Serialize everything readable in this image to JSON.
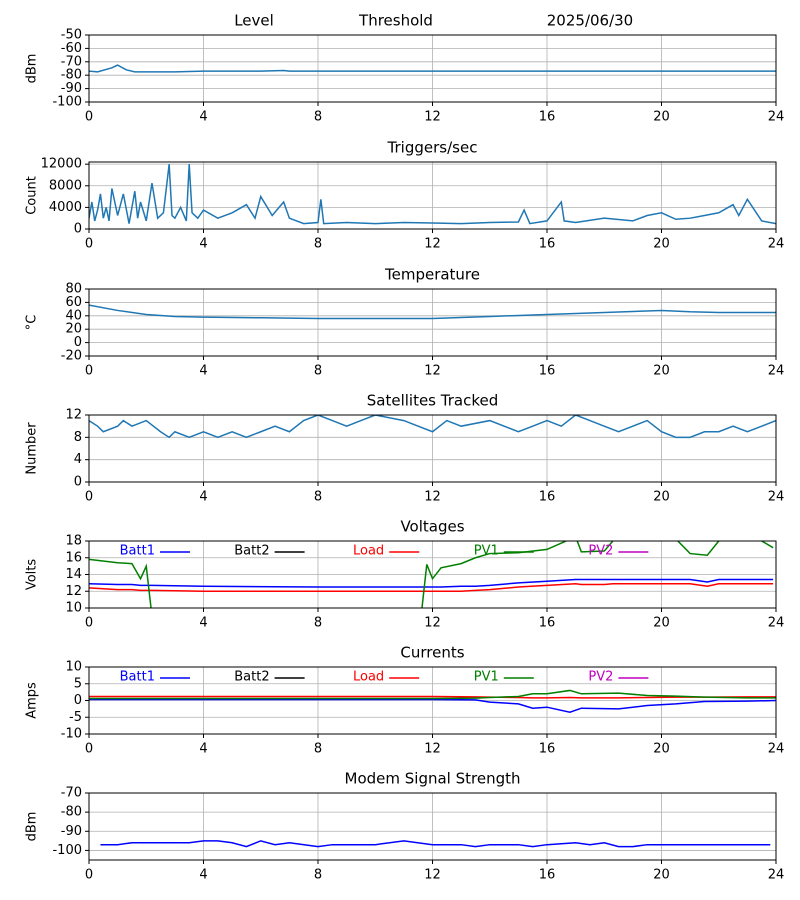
{
  "chart_data": [
    {
      "type": "line",
      "titles": [
        "Level",
        "Threshold",
        "2025/06/30"
      ],
      "ylabel": "dBm",
      "x": [
        0,
        0.3,
        0.8,
        1.0,
        1.3,
        1.6,
        2,
        3,
        4,
        6,
        6.8,
        7,
        8,
        12,
        16,
        20,
        24
      ],
      "series": [
        {
          "color": "#1f77b4",
          "values": [
            -77,
            -77.5,
            -74.5,
            -72.5,
            -76,
            -77.5,
            -77.5,
            -77.5,
            -77,
            -77,
            -76.5,
            -77,
            -77,
            -77,
            -77,
            -77,
            -77
          ]
        }
      ],
      "xlim": [
        0,
        24
      ],
      "xticks": [
        0,
        4,
        8,
        12,
        16,
        20,
        24
      ],
      "ylim": [
        -100,
        -50
      ],
      "yticks": [
        -100,
        -90,
        -80,
        -70,
        -60,
        -50
      ],
      "grid": true
    },
    {
      "type": "line",
      "title": "Triggers/sec",
      "ylabel": "Count",
      "x": [
        0,
        0.1,
        0.2,
        0.3,
        0.4,
        0.5,
        0.6,
        0.7,
        0.8,
        1.0,
        1.2,
        1.4,
        1.6,
        1.7,
        1.8,
        2.0,
        2.2,
        2.4,
        2.6,
        2.8,
        2.9,
        3.0,
        3.2,
        3.4,
        3.5,
        3.6,
        3.8,
        4.0,
        4.5,
        5.0,
        5.5,
        5.8,
        6.0,
        6.4,
        6.8,
        7.0,
        7.5,
        8.0,
        8.1,
        8.2,
        9,
        10,
        11,
        12,
        13,
        14,
        15,
        15.2,
        15.4,
        16,
        16.5,
        16.6,
        17,
        18,
        19,
        19.5,
        20,
        20.5,
        21,
        21.5,
        22,
        22.5,
        22.7,
        23,
        23.5,
        24
      ],
      "series": [
        {
          "color": "#1f77b4",
          "values": [
            2000,
            5000,
            1500,
            3500,
            6500,
            2000,
            4000,
            1500,
            7500,
            2500,
            6500,
            1000,
            7000,
            2000,
            5000,
            1500,
            8500,
            2000,
            3000,
            12000,
            2500,
            2000,
            4000,
            1500,
            12000,
            3000,
            2000,
            3500,
            2000,
            3000,
            4500,
            2000,
            6000,
            2500,
            5000,
            2000,
            1000,
            1200,
            5500,
            1000,
            1200,
            1000,
            1200,
            1100,
            1000,
            1200,
            1300,
            3500,
            1000,
            1500,
            5000,
            1500,
            1200,
            2000,
            1500,
            2500,
            3000,
            1800,
            2000,
            2500,
            3000,
            4500,
            2500,
            5500,
            1500,
            1000
          ]
        }
      ],
      "xlim": [
        0,
        24
      ],
      "xticks": [
        0,
        4,
        8,
        12,
        16,
        20,
        24
      ],
      "ylim": [
        0,
        12400
      ],
      "yticks": [
        0,
        4000,
        8000,
        12000
      ],
      "grid": true
    },
    {
      "type": "line",
      "title": "Temperature",
      "ylabel": "°C",
      "x": [
        0,
        1,
        2,
        3,
        4,
        6,
        8,
        10,
        12,
        14,
        16,
        18,
        20,
        21,
        22,
        24
      ],
      "series": [
        {
          "color": "#1f77b4",
          "values": [
            56,
            48,
            42,
            39,
            38,
            37,
            36,
            36,
            36,
            39,
            42,
            45,
            48,
            46,
            45,
            45
          ]
        }
      ],
      "xlim": [
        0,
        24
      ],
      "xticks": [
        0,
        4,
        8,
        12,
        16,
        20,
        24
      ],
      "ylim": [
        -20,
        80
      ],
      "yticks": [
        -20,
        0,
        20,
        40,
        60,
        80
      ],
      "grid": true
    },
    {
      "type": "line",
      "title": "Satellites Tracked",
      "ylabel": "Number",
      "x": [
        0,
        0.3,
        0.5,
        1,
        1.2,
        1.5,
        2,
        2.5,
        2.8,
        3,
        3.5,
        4,
        4.5,
        5,
        5.5,
        6,
        6.5,
        7,
        7.5,
        8,
        8.5,
        9,
        9.5,
        10,
        11,
        11.5,
        12,
        12.5,
        13,
        14,
        15,
        15.5,
        16,
        16.5,
        17,
        17.5,
        18,
        18.5,
        19,
        19.5,
        20,
        20.5,
        21,
        21.5,
        22,
        22.5,
        23,
        23.5,
        24
      ],
      "series": [
        {
          "color": "#1f77b4",
          "values": [
            11,
            10,
            9,
            10,
            11,
            10,
            11,
            9,
            8,
            9,
            8,
            9,
            8,
            9,
            8,
            9,
            10,
            9,
            11,
            12,
            11,
            10,
            11,
            12,
            11,
            10,
            9,
            11,
            10,
            11,
            9,
            10,
            11,
            10,
            12,
            11,
            10,
            9,
            10,
            11,
            9,
            8,
            8,
            9,
            9,
            10,
            9,
            10,
            11
          ]
        }
      ],
      "xlim": [
        0,
        24
      ],
      "xticks": [
        0,
        4,
        8,
        12,
        16,
        20,
        24
      ],
      "ylim": [
        0,
        12
      ],
      "yticks": [
        0,
        4,
        8,
        12
      ],
      "grid": true
    },
    {
      "type": "line",
      "title": "Voltages",
      "ylabel": "Volts",
      "x": [
        0,
        1,
        1.5,
        1.8,
        2,
        2.2,
        4,
        8,
        11.6,
        11.8,
        12,
        12.3,
        13,
        13.5,
        14,
        15,
        16,
        17,
        17.2,
        18,
        18.3,
        20,
        21,
        21.6,
        22,
        23,
        23.9
      ],
      "series": [
        {
          "name": "Batt1",
          "color": "#0000ff",
          "values": [
            12.9,
            12.8,
            12.8,
            12.7,
            12.7,
            12.7,
            12.6,
            12.5,
            12.5,
            12.5,
            12.5,
            12.5,
            12.6,
            12.6,
            12.7,
            13.0,
            13.2,
            13.4,
            13.4,
            13.4,
            13.4,
            13.4,
            13.4,
            13.1,
            13.4,
            13.4,
            13.4
          ]
        },
        {
          "name": "Batt2",
          "color": "#000000",
          "values": [
            null,
            null,
            null,
            null,
            null,
            null,
            null,
            null,
            null,
            null,
            null,
            null,
            null,
            null,
            null,
            null,
            null,
            null,
            null,
            null,
            null,
            null,
            null,
            null,
            null,
            null,
            null
          ]
        },
        {
          "name": "Load",
          "color": "#ff0000",
          "values": [
            12.4,
            12.2,
            12.2,
            12.1,
            12.1,
            12.1,
            12.0,
            12.0,
            12.0,
            12.0,
            12.0,
            12.0,
            12.0,
            12.1,
            12.2,
            12.5,
            12.7,
            12.9,
            12.8,
            12.8,
            12.9,
            12.9,
            12.9,
            12.6,
            12.9,
            12.9,
            12.9
          ]
        },
        {
          "name": "PV1",
          "color": "#008000",
          "values": [
            15.8,
            15.4,
            15.3,
            13.5,
            15.0,
            9.0,
            null,
            null,
            9.0,
            15.2,
            13.5,
            14.8,
            15.3,
            16.0,
            16.5,
            16.6,
            17.0,
            18.5,
            16.7,
            16.8,
            18.0,
            20,
            16.5,
            16.3,
            18.0,
            19,
            17.2
          ]
        },
        {
          "name": "PV2",
          "color": "#bf00bf",
          "values": [
            null,
            null,
            null,
            null,
            null,
            null,
            null,
            null,
            null,
            null,
            null,
            null,
            null,
            null,
            null,
            null,
            null,
            null,
            null,
            null,
            null,
            null,
            null,
            null,
            null,
            null,
            null
          ]
        }
      ],
      "xlim": [
        0,
        24
      ],
      "xticks": [
        0,
        4,
        8,
        12,
        16,
        20,
        24
      ],
      "ylim": [
        10,
        18
      ],
      "yticks": [
        10,
        12,
        14,
        16,
        18
      ],
      "grid": true,
      "legend": "upper left"
    },
    {
      "type": "line",
      "title": "Currents",
      "ylabel": "Amps",
      "x": [
        0,
        4,
        8,
        12,
        13.5,
        14,
        15,
        15.5,
        16,
        16.8,
        17.2,
        18.5,
        19.5,
        20.5,
        21.5,
        23,
        24
      ],
      "series": [
        {
          "name": "Batt1",
          "color": "#0000ff",
          "values": [
            0.3,
            0.3,
            0.3,
            0.3,
            0.2,
            -0.5,
            -1.0,
            -2.3,
            -2.0,
            -3.5,
            -2.3,
            -2.5,
            -1.5,
            -1.0,
            -0.3,
            -0.2,
            0
          ]
        },
        {
          "name": "Batt2",
          "color": "#000000",
          "values": [
            null,
            null,
            null,
            null,
            null,
            null,
            null,
            null,
            null,
            null,
            null,
            null,
            null,
            null,
            null,
            null,
            null
          ]
        },
        {
          "name": "Load",
          "color": "#ff0000",
          "values": [
            1.2,
            1.2,
            1.2,
            1.2,
            1.1,
            1.0,
            0.9,
            0.8,
            0.8,
            0.9,
            0.8,
            0.8,
            0.9,
            1.0,
            1.0,
            1.1,
            1.1
          ]
        },
        {
          "name": "PV1",
          "color": "#008000",
          "values": [
            0.6,
            0.6,
            0.6,
            0.6,
            0.7,
            0.9,
            1.2,
            2.0,
            2.0,
            3.0,
            2.0,
            2.2,
            1.5,
            1.3,
            1.0,
            0.8,
            0.8
          ]
        },
        {
          "name": "PV2",
          "color": "#bf00bf",
          "values": [
            null,
            null,
            null,
            null,
            null,
            null,
            null,
            null,
            null,
            null,
            null,
            null,
            null,
            null,
            null,
            null,
            null
          ]
        }
      ],
      "xlim": [
        0,
        24
      ],
      "xticks": [
        0,
        4,
        8,
        12,
        16,
        20,
        24
      ],
      "ylim": [
        -10,
        10
      ],
      "yticks": [
        -10,
        -5,
        0,
        5,
        10
      ],
      "grid": true,
      "legend": "upper left"
    },
    {
      "type": "line",
      "title": "Modem Signal Strength",
      "ylabel": "dBm",
      "x": [
        0.4,
        1,
        1.5,
        2,
        3.5,
        4,
        4.5,
        5,
        5.5,
        6,
        6.5,
        7,
        8,
        8.5,
        9,
        10,
        11,
        12,
        13,
        13.5,
        14,
        15,
        15.5,
        16,
        17,
        17.5,
        18,
        18.5,
        19,
        19.5,
        20,
        21,
        22,
        23,
        23.8
      ],
      "series": [
        {
          "color": "#0000ff",
          "values": [
            -97,
            -97,
            -96,
            -96,
            -96,
            -95,
            -95,
            -96,
            -98,
            -95,
            -97,
            -96,
            -98,
            -97,
            -97,
            -97,
            -95,
            -97,
            -97,
            -98,
            -97,
            -97,
            -98,
            -97,
            -96,
            -97,
            -96,
            -98,
            -98,
            -97,
            -97,
            -97,
            -97,
            -97,
            -97
          ]
        }
      ],
      "xlim": [
        0,
        24
      ],
      "xticks": [
        0,
        4,
        8,
        12,
        16,
        20,
        24
      ],
      "ylim": [
        -105,
        -70
      ],
      "yticks": [
        -100,
        -90,
        -80,
        -70
      ],
      "grid": true
    }
  ]
}
